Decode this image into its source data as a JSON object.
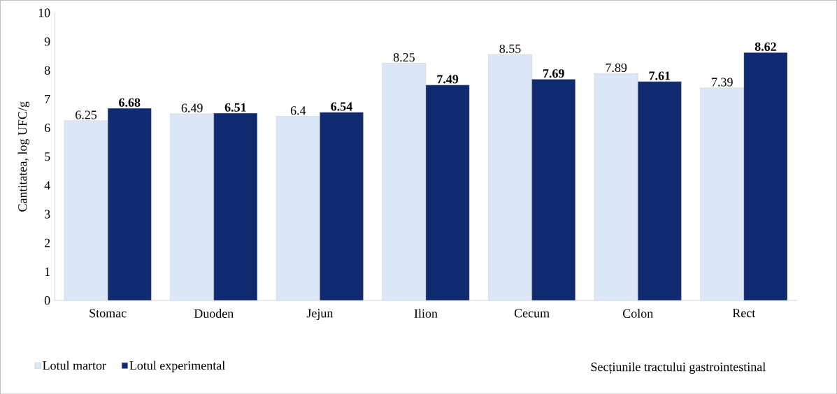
{
  "chart_data": {
    "type": "bar",
    "ylabel": "Cantitatea, log UFC/g",
    "xlabel": "Secțiunile tractului gastrointestinal",
    "categories": [
      "Stomac",
      "Duoden",
      "Jejun",
      "Ilion",
      "Cecum",
      "Colon",
      "Rect"
    ],
    "series": [
      {
        "name": "Lotul martor",
        "color": "#dce8f7",
        "values": [
          6.25,
          6.49,
          6.4,
          8.25,
          8.55,
          7.89,
          7.39
        ],
        "value_labels": [
          "6.25",
          "6.49",
          "6.4",
          "8.25",
          "8.55",
          "7.89",
          "7.39"
        ]
      },
      {
        "name": "Lotul experimental",
        "color": "#0f2a6e",
        "values": [
          6.68,
          6.51,
          6.54,
          7.49,
          7.69,
          7.61,
          8.62
        ],
        "value_labels": [
          "6.68",
          "6.51",
          "6.54",
          "7.49",
          "7.69",
          "7.61",
          "8.62"
        ]
      }
    ],
    "ylim": [
      0,
      10
    ],
    "yticks": [
      0,
      1,
      2,
      3,
      4,
      5,
      6,
      7,
      8,
      9,
      10
    ],
    "legend": "bottom left",
    "grid": false
  }
}
